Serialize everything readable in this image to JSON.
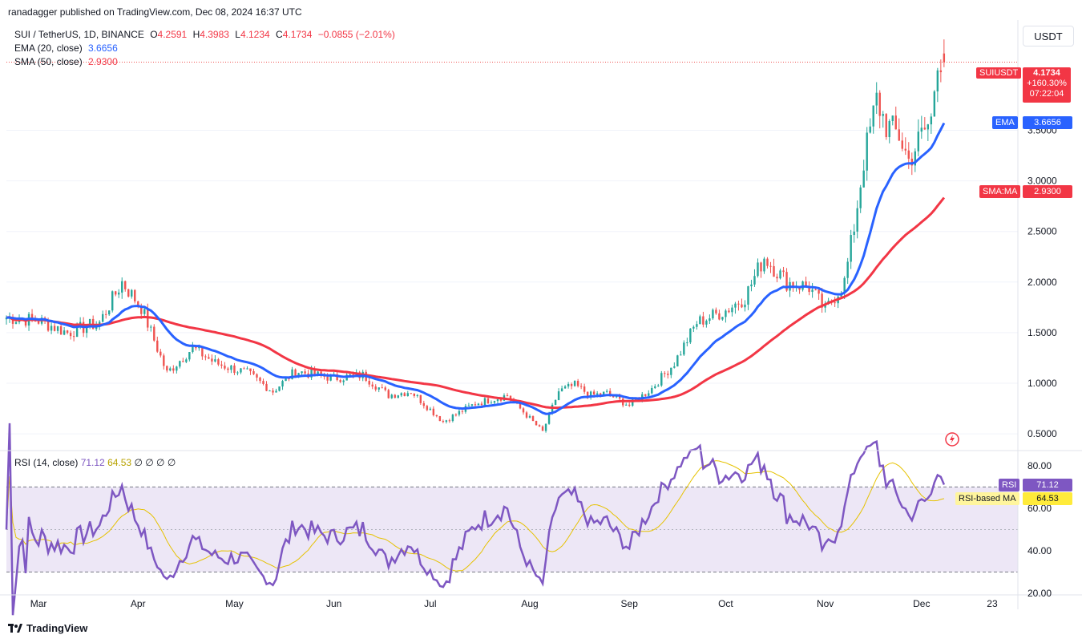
{
  "header": {
    "published_line": "ranadagger published on TradingView.com, Dec 08, 2024 16:37 UTC"
  },
  "legend": {
    "symbol": "SUI / TetherUS, 1D, BINANCE",
    "open_label": "O",
    "open": "4.2591",
    "high_label": "H",
    "high": "4.3983",
    "low_label": "L",
    "low": "4.1234",
    "close_label": "C",
    "close": "4.1734",
    "change": "−0.0855 (−2.01%)",
    "ema_label": "EMA (20, close)",
    "ema_value": "3.6656",
    "sma_label": "SMA (50, close)",
    "sma_value": "2.9300"
  },
  "rsi_legend": {
    "label": "RSI (14, close)",
    "rsi_value": "71.12",
    "ma_value": "64.53",
    "extras": "∅ ∅ ∅ ∅"
  },
  "axis": {
    "currency": "USDT",
    "price_ticks": [
      "3.5000",
      "3.0000",
      "2.5000",
      "2.0000",
      "1.5000",
      "1.0000",
      "0.5000"
    ],
    "rsi_ticks": [
      "80.00",
      "60.00",
      "40.00",
      "20.00"
    ],
    "time_ticks": [
      "Mar",
      "Apr",
      "May",
      "Jun",
      "Jul",
      "Aug",
      "Sep",
      "Oct",
      "Nov",
      "Dec",
      "23"
    ]
  },
  "tags": {
    "symbol_tag": "SUIUSDT",
    "price": "4.1734",
    "pct": "+160.30%",
    "countdown": "07:22:04",
    "ema_tag": "EMA",
    "ema_value": "3.6656",
    "sma_tag": "SMA:MA",
    "sma_value": "2.9300",
    "rsi_tag": "RSI",
    "rsi_value": "71.12",
    "rsi_ma_tag": "RSI-based MA",
    "rsi_ma_value": "64.53"
  },
  "footer": {
    "brand": "TradingView"
  },
  "colors": {
    "up": "#26a69a",
    "down": "#ef5350",
    "ema": "#2962ff",
    "sma": "#f23645",
    "rsi": "#7e57c2",
    "rsi_ma": "#e6c200",
    "rsi_band": "#ede7f6"
  },
  "chart_data": [
    {
      "type": "candlestick",
      "title": "SUI / TetherUS, 1D, BINANCE",
      "ylim": [
        0.35,
        4.55
      ],
      "y_scale": "linear",
      "x_range": [
        "2024-02-20",
        "2024-12-31"
      ],
      "anchors_close": [
        [
          "2024-02-20",
          1.65
        ],
        [
          "2024-03-01",
          1.62
        ],
        [
          "2024-03-10",
          1.5
        ],
        [
          "2024-03-20",
          1.6
        ],
        [
          "2024-03-27",
          2.0
        ],
        [
          "2024-04-02",
          1.75
        ],
        [
          "2024-04-10",
          1.1
        ],
        [
          "2024-04-18",
          1.35
        ],
        [
          "2024-04-25",
          1.2
        ],
        [
          "2024-05-05",
          1.1
        ],
        [
          "2024-05-13",
          0.92
        ],
        [
          "2024-05-20",
          1.12
        ],
        [
          "2024-06-01",
          1.05
        ],
        [
          "2024-06-10",
          1.08
        ],
        [
          "2024-06-18",
          0.88
        ],
        [
          "2024-06-25",
          0.92
        ],
        [
          "2024-07-05",
          0.62
        ],
        [
          "2024-07-15",
          0.8
        ],
        [
          "2024-07-25",
          0.88
        ],
        [
          "2024-08-05",
          0.52
        ],
        [
          "2024-08-10",
          0.92
        ],
        [
          "2024-08-15",
          0.98
        ],
        [
          "2024-08-20",
          0.88
        ],
        [
          "2024-08-25",
          0.9
        ],
        [
          "2024-09-01",
          0.78
        ],
        [
          "2024-09-08",
          0.95
        ],
        [
          "2024-09-15",
          1.2
        ],
        [
          "2024-09-22",
          1.6
        ],
        [
          "2024-10-01",
          1.72
        ],
        [
          "2024-10-07",
          1.85
        ],
        [
          "2024-10-13",
          2.25
        ],
        [
          "2024-10-20",
          2.0
        ],
        [
          "2024-10-27",
          1.95
        ],
        [
          "2024-11-01",
          1.72
        ],
        [
          "2024-11-07",
          2.0
        ],
        [
          "2024-11-10",
          2.55
        ],
        [
          "2024-11-13",
          3.2
        ],
        [
          "2024-11-17",
          3.8
        ],
        [
          "2024-11-20",
          3.55
        ],
        [
          "2024-11-24",
          3.45
        ],
        [
          "2024-11-27",
          3.2
        ],
        [
          "2024-12-01",
          3.45
        ],
        [
          "2024-12-04",
          3.6
        ],
        [
          "2024-12-06",
          4.25
        ],
        [
          "2024-12-08",
          4.17
        ]
      ],
      "last": {
        "open": 4.2591,
        "high": 4.3983,
        "low": 4.1234,
        "close": 4.1734
      },
      "series": [
        {
          "name": "EMA (20, close)",
          "last": 3.6656
        },
        {
          "name": "SMA (50, close)",
          "last": 2.93
        }
      ]
    },
    {
      "type": "line",
      "title": "RSI (14, close)",
      "ylim": [
        20,
        86
      ],
      "bands": [
        30,
        70
      ],
      "series": [
        {
          "name": "RSI",
          "last": 71.12
        },
        {
          "name": "RSI-based MA",
          "last": 64.53
        }
      ]
    }
  ]
}
